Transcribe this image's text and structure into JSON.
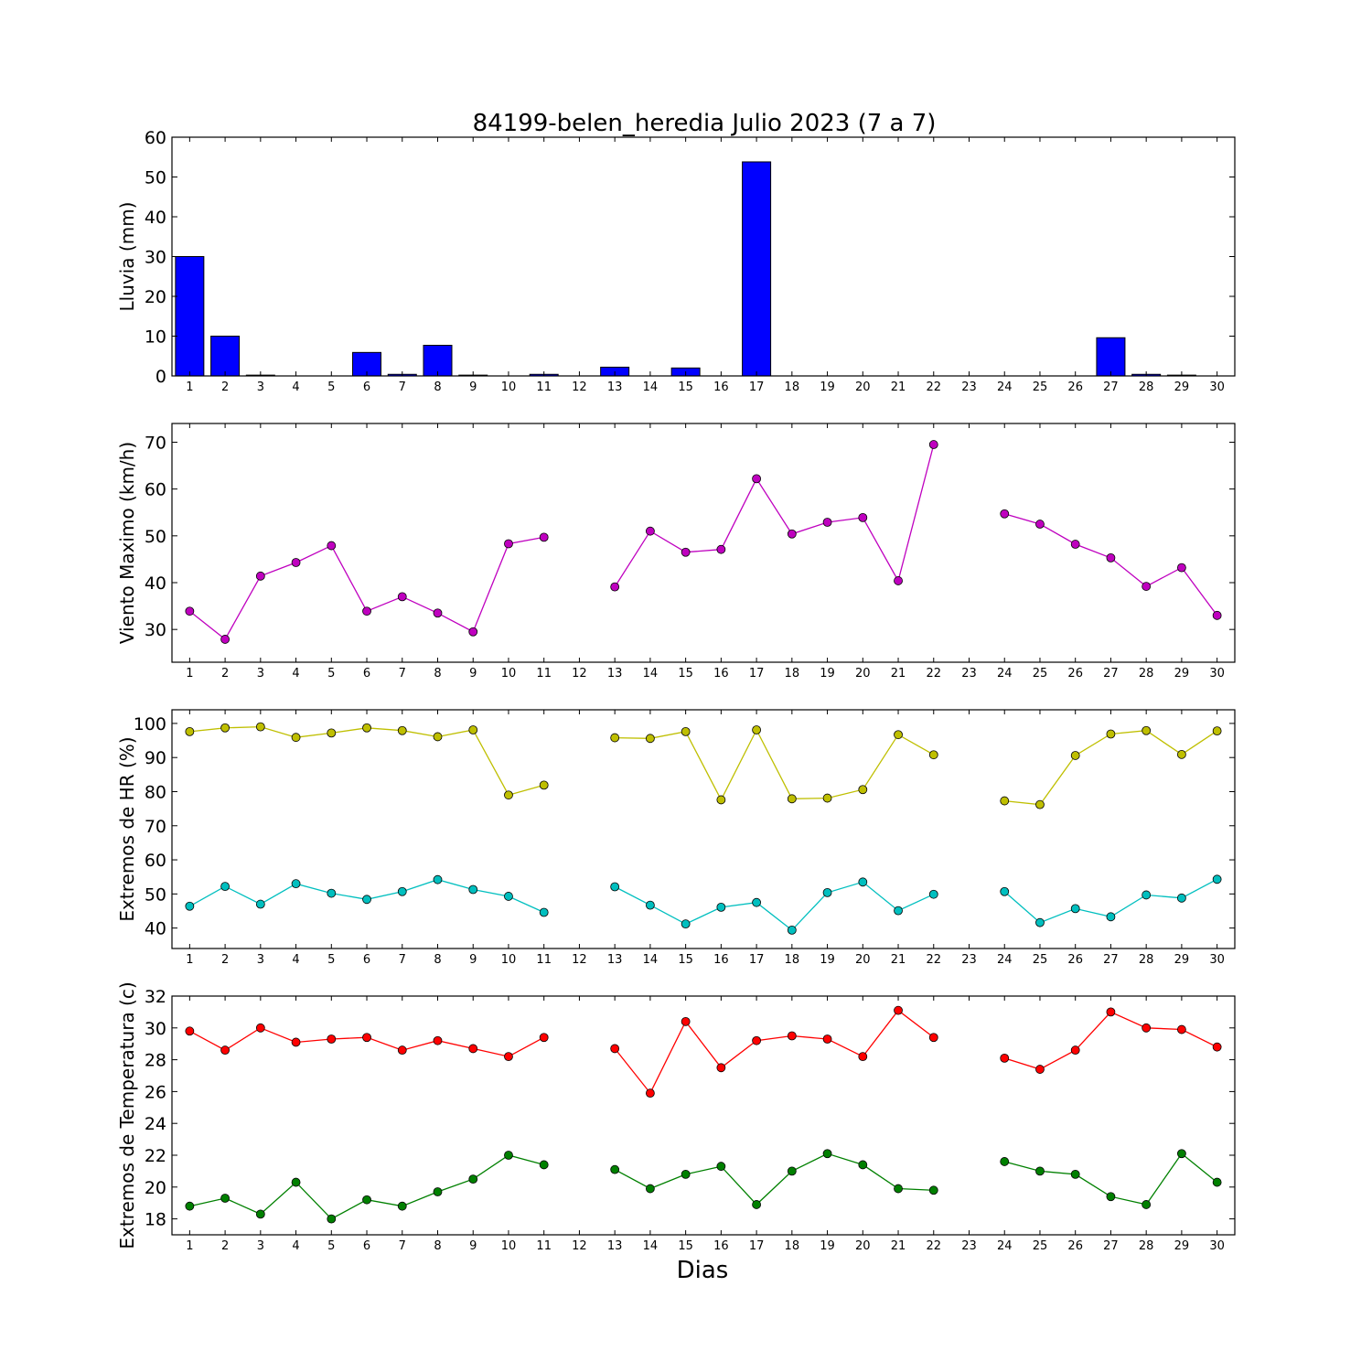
{
  "figure": {
    "title": "84199-belen_heredia Julio 2023  (7 a 7)",
    "xlabel": "Dias"
  },
  "chart_data": [
    {
      "type": "bar",
      "ylabel": "Lluvia (mm)",
      "ylim": [
        0,
        60
      ],
      "yticks": [
        0,
        10,
        20,
        30,
        40,
        50,
        60
      ],
      "x": [
        1,
        2,
        3,
        4,
        5,
        6,
        7,
        8,
        9,
        10,
        11,
        12,
        13,
        14,
        15,
        16,
        17,
        18,
        19,
        20,
        21,
        22,
        23,
        24,
        25,
        26,
        27,
        28,
        29,
        30
      ],
      "values": [
        30.0,
        10.0,
        0.2,
        0,
        0,
        5.9,
        0.4,
        7.7,
        0.2,
        0,
        0.4,
        0,
        2.2,
        0,
        2.0,
        0,
        53.8,
        0,
        0,
        0,
        0,
        0,
        0,
        0,
        0,
        0,
        9.6,
        0.4,
        0.2,
        0
      ],
      "color": "#0000ff",
      "grid": false
    },
    {
      "type": "line",
      "ylabel": "Viento Maximo (km/h)",
      "ylim": [
        23,
        74
      ],
      "yticks": [
        30,
        40,
        50,
        60,
        70
      ],
      "x": [
        1,
        2,
        3,
        4,
        5,
        6,
        7,
        8,
        9,
        10,
        11,
        12,
        13,
        14,
        15,
        16,
        17,
        18,
        19,
        20,
        21,
        22,
        23,
        24,
        25,
        26,
        27,
        28,
        29,
        30
      ],
      "series": [
        {
          "color": "#bf00bf",
          "values": [
            33.9,
            27.9,
            41.4,
            44.3,
            47.9,
            33.9,
            37.0,
            33.5,
            29.5,
            48.3,
            49.7,
            null,
            39.1,
            51.0,
            46.5,
            47.1,
            62.2,
            50.4,
            52.9,
            53.9,
            40.4,
            69.5,
            null,
            54.7,
            52.5,
            48.2,
            45.3,
            39.2,
            43.2,
            33.0
          ]
        }
      ],
      "grid": false
    },
    {
      "type": "line",
      "ylabel": "Extremos de HR (%)",
      "ylim": [
        34,
        104
      ],
      "yticks": [
        40,
        50,
        60,
        70,
        80,
        90,
        100
      ],
      "x": [
        1,
        2,
        3,
        4,
        5,
        6,
        7,
        8,
        9,
        10,
        11,
        12,
        13,
        14,
        15,
        16,
        17,
        18,
        19,
        20,
        21,
        22,
        23,
        24,
        25,
        26,
        27,
        28,
        29,
        30
      ],
      "series": [
        {
          "color": "#bfbf00",
          "values": [
            97.6,
            98.7,
            99.0,
            95.9,
            97.2,
            98.7,
            97.9,
            96.1,
            98.1,
            79.0,
            81.9,
            null,
            95.8,
            95.6,
            97.6,
            77.6,
            98.1,
            77.9,
            78.1,
            80.6,
            96.7,
            90.8,
            null,
            77.3,
            76.2,
            90.6,
            96.9,
            97.9,
            90.9,
            97.8
          ]
        },
        {
          "color": "#00bfbf",
          "values": [
            46.4,
            52.2,
            47.0,
            53.0,
            50.2,
            48.4,
            50.7,
            54.2,
            51.3,
            49.3,
            44.6,
            null,
            52.1,
            46.7,
            41.2,
            46.1,
            47.5,
            39.4,
            50.4,
            53.5,
            45.1,
            49.9,
            null,
            50.7,
            41.6,
            45.7,
            43.3,
            49.7,
            48.8,
            54.3
          ]
        }
      ],
      "grid": false
    },
    {
      "type": "line",
      "ylabel": "Extremos de Temperatura (c)",
      "ylim": [
        17,
        32
      ],
      "yticks": [
        18,
        20,
        22,
        24,
        26,
        28,
        30,
        32
      ],
      "x": [
        1,
        2,
        3,
        4,
        5,
        6,
        7,
        8,
        9,
        10,
        11,
        12,
        13,
        14,
        15,
        16,
        17,
        18,
        19,
        20,
        21,
        22,
        23,
        24,
        25,
        26,
        27,
        28,
        29,
        30
      ],
      "series": [
        {
          "color": "#ff0000",
          "values": [
            29.8,
            28.6,
            30.0,
            29.1,
            29.3,
            29.4,
            28.6,
            29.2,
            28.7,
            28.2,
            29.4,
            null,
            28.7,
            25.9,
            30.4,
            27.5,
            29.2,
            29.5,
            29.3,
            28.2,
            31.1,
            29.4,
            null,
            28.1,
            27.4,
            28.6,
            31.0,
            30.0,
            29.9,
            28.8
          ]
        },
        {
          "color": "#008000",
          "values": [
            18.8,
            19.3,
            18.3,
            20.3,
            18.0,
            19.2,
            18.8,
            19.7,
            20.5,
            22.0,
            21.4,
            null,
            21.1,
            19.9,
            20.8,
            21.3,
            18.9,
            21.0,
            22.1,
            21.4,
            19.9,
            19.8,
            null,
            21.6,
            21.0,
            20.8,
            19.4,
            18.9,
            22.1,
            20.3
          ]
        }
      ],
      "grid": false
    }
  ]
}
